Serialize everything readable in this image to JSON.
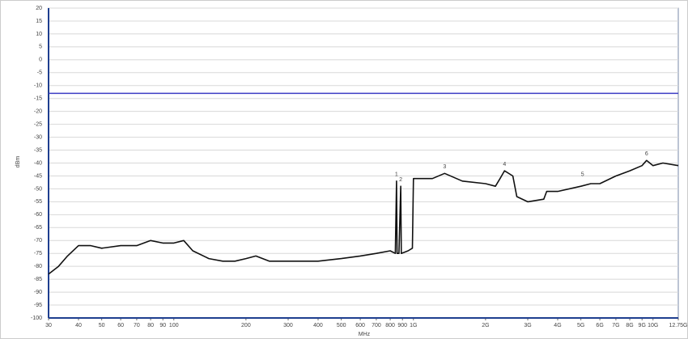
{
  "chart_data": {
    "type": "line",
    "y_label": "dBm",
    "x_label": "MHz",
    "log_x": true,
    "grid": true,
    "xlim": [
      30,
      12750
    ],
    "ylim": [
      -100,
      20
    ],
    "yticks": [
      20,
      15,
      10,
      5,
      0,
      -5,
      -10,
      -15,
      -20,
      -25,
      -30,
      -35,
      -40,
      -45,
      -50,
      -55,
      -60,
      -65,
      -70,
      -75,
      -80,
      -85,
      -90,
      -95,
      -100
    ],
    "xticks": [
      30,
      40,
      50,
      60,
      70,
      80,
      90,
      100,
      200,
      300,
      400,
      500,
      600,
      700,
      800,
      900,
      {
        "value": 1000,
        "label": "1G"
      },
      {
        "value": 2000,
        "label": "2G"
      },
      {
        "value": 3000,
        "label": "3G"
      },
      {
        "value": 4000,
        "label": "4G"
      },
      {
        "value": 5000,
        "label": "5G"
      },
      {
        "value": 6000,
        "label": "6G"
      },
      {
        "value": 7000,
        "label": "7G"
      },
      {
        "value": 8000,
        "label": "8G"
      },
      {
        "value": 9000,
        "label": "9G"
      },
      {
        "value": 10000,
        "label": "10G"
      },
      {
        "value": 12750,
        "label": "12.75G"
      }
    ],
    "x": [
      30,
      33,
      36,
      40,
      45,
      50,
      60,
      70,
      80,
      90,
      100,
      110,
      120,
      140,
      160,
      180,
      200,
      220,
      250,
      300,
      400,
      500,
      600,
      700,
      800,
      840,
      850,
      855,
      870,
      885,
      890,
      950,
      990,
      1000,
      1200,
      1350,
      1600,
      2000,
      2200,
      2300,
      2400,
      2600,
      2700,
      3000,
      3500,
      3600,
      4000,
      5000,
      5500,
      6000,
      7000,
      8000,
      9000,
      9400,
      10000,
      11000,
      12750
    ],
    "series": [
      {
        "color": "#111111",
        "values": [
          -83,
          -80,
          -76,
          -72,
          -72,
          -73,
          -72,
          -72,
          -70,
          -71,
          -71,
          -70,
          -74,
          -77,
          -78,
          -78,
          -77,
          -76,
          -78,
          -78,
          -78,
          -77,
          -76,
          -75,
          -74,
          -75,
          -47,
          -75,
          -75,
          -49,
          -75,
          -74,
          -73,
          -46,
          -46,
          -44,
          -47,
          -48,
          -49,
          -46,
          -43,
          -45,
          -53,
          -55,
          -54,
          -51,
          -51,
          -49,
          -48,
          -48,
          -45,
          -43,
          -41,
          -39,
          -41,
          -40,
          -41
        ]
      }
    ],
    "limit_line": {
      "value": -13,
      "color": "#3b3bc4"
    },
    "markers": [
      {
        "label": "1",
        "x": 850,
        "y": -47
      },
      {
        "label": "2",
        "x": 885,
        "y": -49
      },
      {
        "label": "3",
        "x": 1350,
        "y": -44
      },
      {
        "label": "4",
        "x": 2400,
        "y": -43
      },
      {
        "label": "5",
        "x": 5080,
        "y": -47
      },
      {
        "label": "6",
        "x": 9400,
        "y": -39
      }
    ]
  }
}
